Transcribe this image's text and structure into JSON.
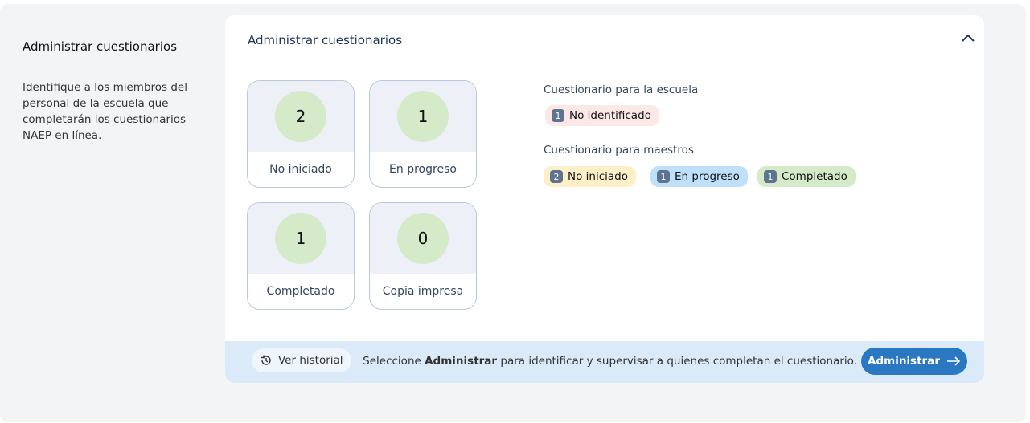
{
  "sidebar": {
    "title": "Administrar cuestionarios",
    "description": "Identifique a los miembros del personal de la escuela que completarán los cuestionarios NAEP en línea."
  },
  "card": {
    "title": "Administrar cuestionarios"
  },
  "tiles": [
    {
      "count": "2",
      "label": "No iniciado"
    },
    {
      "count": "1",
      "label": "En progreso"
    },
    {
      "count": "1",
      "label": "Completado"
    },
    {
      "count": "0",
      "label": "Copia impresa"
    }
  ],
  "school": {
    "heading": "Cuestionario para la escuela",
    "pills": [
      {
        "count": "1",
        "label": "No identificado",
        "color": "#fde8e8"
      }
    ]
  },
  "teachers": {
    "heading": "Cuestionario para maestros",
    "pills": [
      {
        "count": "2",
        "label": "No iniciado",
        "color": "#fdefc8"
      },
      {
        "count": "1",
        "label": "En progreso",
        "color": "#bfe0fb"
      },
      {
        "count": "1",
        "label": "Completado",
        "color": "#d5eac8"
      }
    ]
  },
  "footer": {
    "history_label": "Ver historial",
    "text_before": "Seleccione ",
    "text_bold": "Administrar",
    "text_after": " para identificar y supervisar a quienes completan el cuestionario.",
    "button_label": "Administrar"
  }
}
